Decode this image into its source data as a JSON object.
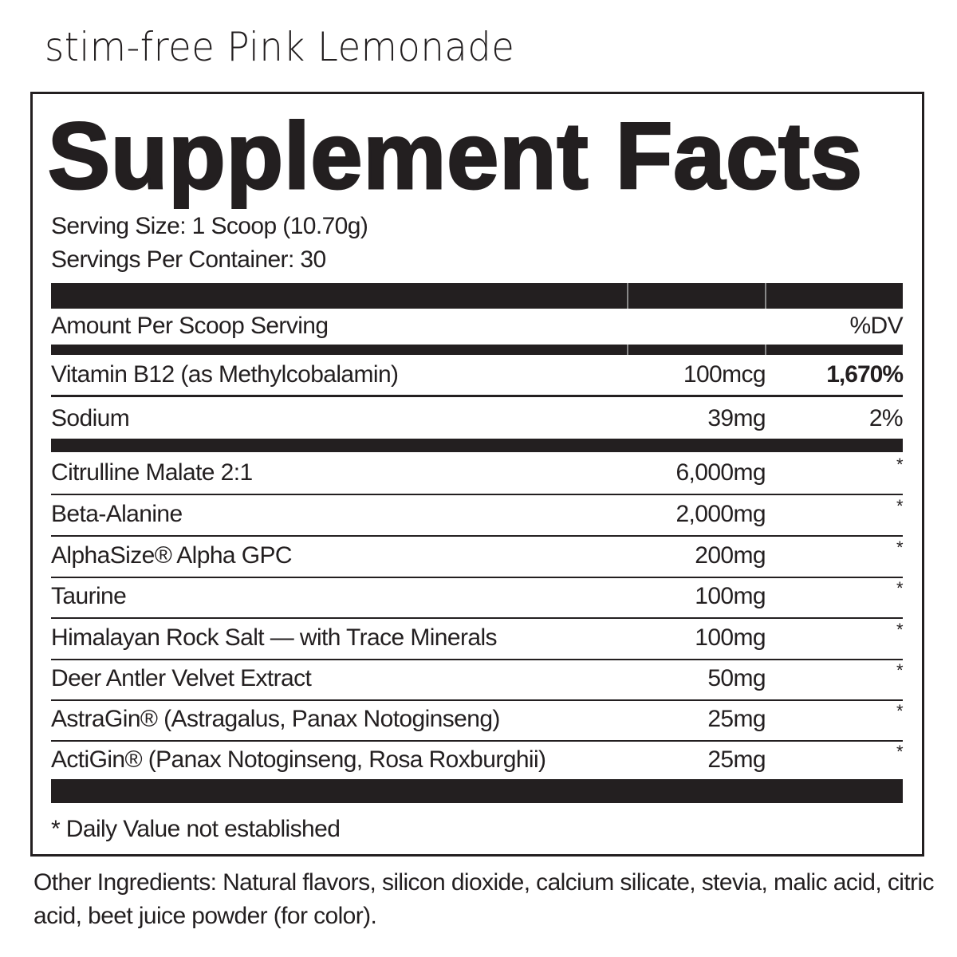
{
  "flavor": "stim-free Pink Lemonade",
  "title": "Supplement Facts",
  "serving_size": "Serving Size: 1 Scoop (10.70g)",
  "servings_per_container": "Servings Per Container: 30",
  "header": {
    "amount": "Amount Per Scoop Serving",
    "dv": "%DV"
  },
  "vitamins": [
    {
      "name": "Vitamin B12 (as Methylcobalamin)",
      "amount": "100mcg",
      "dv": "1,670%"
    },
    {
      "name": "Sodium",
      "amount": "39mg",
      "dv": "2%"
    }
  ],
  "ingredients": [
    {
      "name": "Citrulline Malate 2:1",
      "amount": "6,000mg",
      "dv": "*"
    },
    {
      "name": "Beta-Alanine",
      "amount": "2,000mg",
      "dv": "*"
    },
    {
      "name": "AlphaSize® Alpha GPC",
      "amount": "200mg",
      "dv": "*"
    },
    {
      "name": "Taurine",
      "amount": "100mg",
      "dv": "*"
    },
    {
      "name": "Himalayan Rock Salt — with Trace Minerals",
      "amount": "100mg",
      "dv": "*"
    },
    {
      "name": "Deer Antler Velvet Extract",
      "amount": "50mg",
      "dv": "*"
    },
    {
      "name": "AstraGin® (Astragalus, Panax Notoginseng)",
      "amount": "25mg",
      "dv": "*"
    },
    {
      "name": "ActiGin® (Panax Notoginseng, Rosa Roxburghii)",
      "amount": "25mg",
      "dv": "*"
    }
  ],
  "footnote": "* Daily Value not established",
  "other_ingredients": "Other Ingredients: Natural flavors, silicon dioxide, calcium silicate, stevia, malic acid, citric acid, beet juice powder (for color)."
}
